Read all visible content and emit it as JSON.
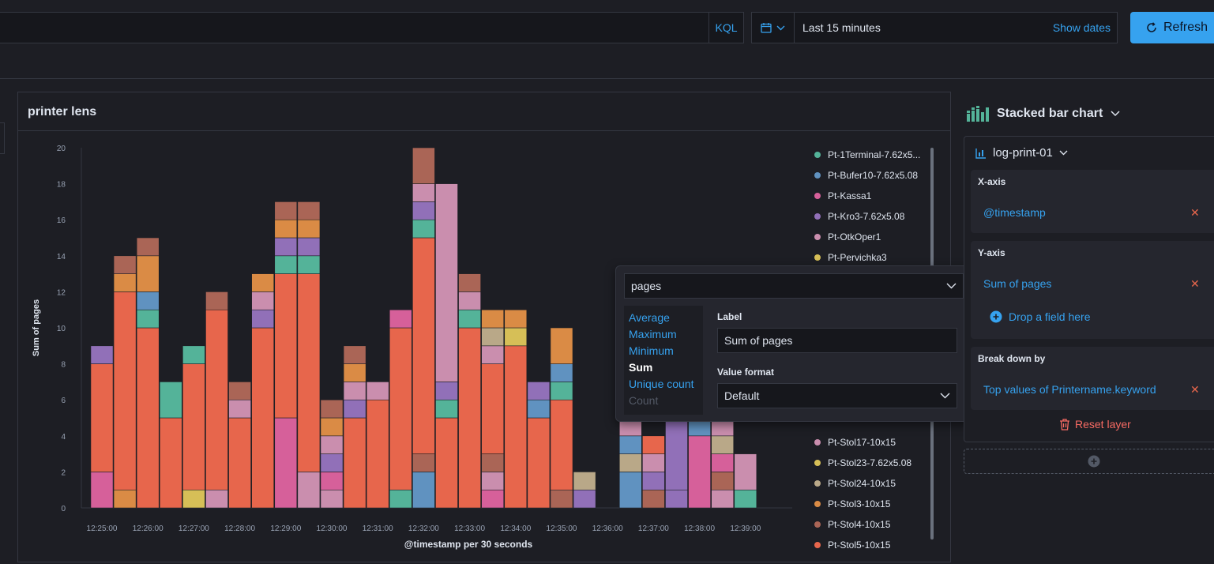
{
  "topbar": {
    "kql_label": "KQL",
    "date_range": "Last 15 minutes",
    "show_dates_label": "Show dates",
    "refresh_label": "Refresh"
  },
  "panel": {
    "title": "printer lens"
  },
  "chart_data": {
    "type": "bar",
    "stacked": true,
    "title": "printer lens",
    "xlabel": "@timestamp per 30 seconds",
    "ylabel": "Sum of pages",
    "ylim": [
      0,
      20
    ],
    "yticks": [
      0,
      2,
      4,
      6,
      8,
      10,
      12,
      14,
      16,
      18,
      20
    ],
    "xtick_labels": [
      "12:25:00",
      "12:26:00",
      "12:27:00",
      "12:28:00",
      "12:29:00",
      "12:30:00",
      "12:31:00",
      "12:32:00",
      "12:33:00",
      "12:34:00",
      "12:35:00",
      "12:36:00",
      "12:37:00",
      "12:38:00",
      "12:39:00"
    ],
    "grid": false,
    "legend_position": "right",
    "bars": [
      {
        "t": "12:25:00",
        "stack": [
          [
            2,
            "#d6609a"
          ],
          [
            6,
            "#e7664c"
          ],
          [
            1,
            "#9170b8"
          ]
        ]
      },
      {
        "t": "12:25:30",
        "stack": [
          [
            1,
            "#da8b45"
          ],
          [
            11,
            "#e7664c"
          ],
          [
            1,
            "#da8b45"
          ],
          [
            1,
            "#aa6556"
          ]
        ]
      },
      {
        "t": "12:26:00",
        "stack": [
          [
            10,
            "#e7664c"
          ],
          [
            1,
            "#54b399"
          ],
          [
            1,
            "#6092c0"
          ],
          [
            2,
            "#da8b45"
          ],
          [
            1,
            "#aa6556"
          ]
        ]
      },
      {
        "t": "12:26:30",
        "stack": [
          [
            5,
            "#e7664c"
          ],
          [
            2,
            "#54b399"
          ]
        ]
      },
      {
        "t": "12:27:00",
        "stack": [
          [
            1,
            "#d6bf57"
          ],
          [
            7,
            "#e7664c"
          ],
          [
            1,
            "#54b399"
          ]
        ]
      },
      {
        "t": "12:27:30",
        "stack": [
          [
            1,
            "#ca8eae"
          ],
          [
            10,
            "#e7664c"
          ],
          [
            1,
            "#aa6556"
          ]
        ]
      },
      {
        "t": "12:28:00",
        "stack": [
          [
            5,
            "#e7664c"
          ],
          [
            1,
            "#ca8eae"
          ],
          [
            1,
            "#aa6556"
          ]
        ]
      },
      {
        "t": "12:28:30",
        "stack": [
          [
            10,
            "#e7664c"
          ],
          [
            1,
            "#9170b8"
          ],
          [
            1,
            "#ca8eae"
          ],
          [
            1,
            "#da8b45"
          ]
        ]
      },
      {
        "t": "12:29:00",
        "stack": [
          [
            5,
            "#d6609a"
          ],
          [
            8,
            "#e7664c"
          ],
          [
            1,
            "#54b399"
          ],
          [
            1,
            "#9170b8"
          ],
          [
            1,
            "#da8b45"
          ],
          [
            1,
            "#aa6556"
          ]
        ]
      },
      {
        "t": "12:29:30",
        "stack": [
          [
            2,
            "#ca8eae"
          ],
          [
            11,
            "#e7664c"
          ],
          [
            1,
            "#54b399"
          ],
          [
            1,
            "#9170b8"
          ],
          [
            1,
            "#da8b45"
          ],
          [
            1,
            "#aa6556"
          ]
        ]
      },
      {
        "t": "12:30:00",
        "stack": [
          [
            1,
            "#ca8eae"
          ],
          [
            1,
            "#d6609a"
          ],
          [
            1,
            "#9170b8"
          ],
          [
            1,
            "#ca8eae"
          ],
          [
            1,
            "#da8b45"
          ],
          [
            1,
            "#aa6556"
          ]
        ]
      },
      {
        "t": "12:30:30",
        "stack": [
          [
            5,
            "#e7664c"
          ],
          [
            1,
            "#9170b8"
          ],
          [
            1,
            "#ca8eae"
          ],
          [
            1,
            "#da8b45"
          ],
          [
            1,
            "#aa6556"
          ]
        ]
      },
      {
        "t": "12:31:00",
        "stack": [
          [
            6,
            "#e7664c"
          ],
          [
            1,
            "#ca8eae"
          ]
        ]
      },
      {
        "t": "12:31:30",
        "stack": [
          [
            1,
            "#54b399"
          ],
          [
            9,
            "#e7664c"
          ],
          [
            1,
            "#d6609a"
          ]
        ]
      },
      {
        "t": "12:32:00",
        "stack": [
          [
            2,
            "#6092c0"
          ],
          [
            1,
            "#aa6556"
          ],
          [
            12,
            "#e7664c"
          ],
          [
            1,
            "#54b399"
          ],
          [
            1,
            "#9170b8"
          ],
          [
            1,
            "#ca8eae"
          ],
          [
            2,
            "#aa6556"
          ]
        ]
      },
      {
        "t": "12:32:30",
        "stack": [
          [
            5,
            "#e7664c"
          ],
          [
            1,
            "#54b399"
          ],
          [
            1,
            "#9170b8"
          ],
          [
            11,
            "#ca8eae"
          ]
        ]
      },
      {
        "t": "12:33:00",
        "stack": [
          [
            10,
            "#e7664c"
          ],
          [
            1,
            "#54b399"
          ],
          [
            1,
            "#ca8eae"
          ],
          [
            1,
            "#aa6556"
          ]
        ]
      },
      {
        "t": "12:33:30",
        "stack": [
          [
            1,
            "#d6609a"
          ],
          [
            1,
            "#ca8eae"
          ],
          [
            1,
            "#aa6556"
          ],
          [
            5,
            "#e7664c"
          ],
          [
            1,
            "#ca8eae"
          ],
          [
            1,
            "#b9a888"
          ],
          [
            1,
            "#da8b45"
          ]
        ]
      },
      {
        "t": "12:34:00",
        "stack": [
          [
            9,
            "#e7664c"
          ],
          [
            1,
            "#d6bf57"
          ],
          [
            1,
            "#da8b45"
          ]
        ]
      },
      {
        "t": "12:34:30",
        "stack": [
          [
            5,
            "#e7664c"
          ],
          [
            1,
            "#6092c0"
          ],
          [
            1,
            "#9170b8"
          ]
        ]
      },
      {
        "t": "12:35:00",
        "stack": [
          [
            1,
            "#aa6556"
          ],
          [
            5,
            "#e7664c"
          ],
          [
            1,
            "#54b399"
          ],
          [
            1,
            "#6092c0"
          ],
          [
            2,
            "#da8b45"
          ]
        ]
      },
      {
        "t": "12:35:30",
        "stack": [
          [
            1,
            "#9170b8"
          ],
          [
            1,
            "#b9a888"
          ]
        ]
      },
      {
        "t": "12:36:30",
        "stack": [
          [
            2,
            "#6092c0"
          ],
          [
            1,
            "#b9a888"
          ],
          [
            1,
            "#6092c0"
          ],
          [
            1,
            "#ca8eae"
          ]
        ]
      },
      {
        "t": "12:37:00",
        "stack": [
          [
            1,
            "#aa6556"
          ],
          [
            1,
            "#9170b8"
          ],
          [
            1,
            "#ca8eae"
          ],
          [
            1,
            "#e7664c"
          ]
        ]
      },
      {
        "t": "12:37:30",
        "stack": [
          [
            1,
            "#9170b8"
          ],
          [
            4,
            "#9170b8"
          ]
        ]
      },
      {
        "t": "12:38:00",
        "stack": [
          [
            4,
            "#d6609a"
          ],
          [
            1,
            "#6092c0"
          ]
        ]
      },
      {
        "t": "12:38:30",
        "stack": [
          [
            1,
            "#ca8eae"
          ],
          [
            1,
            "#aa6556"
          ],
          [
            1,
            "#d6609a"
          ],
          [
            1,
            "#b9a888"
          ],
          [
            1,
            "#ca8eae"
          ]
        ]
      },
      {
        "t": "12:39:00",
        "stack": [
          [
            1,
            "#54b399"
          ],
          [
            2,
            "#ca8eae"
          ]
        ]
      }
    ]
  },
  "legend": [
    {
      "label": "Pt-1Terminal-7.62x5...",
      "color": "#54b399"
    },
    {
      "label": "Pt-Bufer10-7.62x5.08",
      "color": "#6092c0"
    },
    {
      "label": "Pt-Kassa1",
      "color": "#d6609a"
    },
    {
      "label": "Pt-Kro3-7.62x5.08",
      "color": "#9170b8"
    },
    {
      "label": "Pt-OtkOper1",
      "color": "#ca8eae"
    },
    {
      "label": "Pt-Pervichka3",
      "color": "#d6bf57"
    },
    {
      "label": "Pt-Stol17-10x15",
      "color": "#ca8eae"
    },
    {
      "label": "Pt-Stol23-7.62x5.08",
      "color": "#d6bf57"
    },
    {
      "label": "Pt-Stol24-10x15",
      "color": "#b9a888"
    },
    {
      "label": "Pt-Stol3-10x15",
      "color": "#da8b45"
    },
    {
      "label": "Pt-Stol4-10x15",
      "color": "#aa6556"
    },
    {
      "label": "Pt-Stol5-10x15",
      "color": "#e7664c"
    }
  ],
  "popover": {
    "field_value": "pages",
    "functions": [
      {
        "label": "Average",
        "state": "link"
      },
      {
        "label": "Maximum",
        "state": "link"
      },
      {
        "label": "Minimum",
        "state": "link"
      },
      {
        "label": "Sum",
        "state": "active"
      },
      {
        "label": "Unique count",
        "state": "link"
      },
      {
        "label": "Count",
        "state": "disabled"
      }
    ],
    "label_title": "Label",
    "label_value": "Sum of pages",
    "format_title": "Value format",
    "format_value": "Default"
  },
  "sidebar": {
    "chart_type": "Stacked bar chart",
    "layer_index": "log-print-01",
    "x_axis_title": "X-axis",
    "x_axis_field": "@timestamp",
    "y_axis_title": "Y-axis",
    "y_axis_field": "Sum of pages",
    "drop_field_label": "Drop a field here",
    "breakdown_title": "Break down by",
    "breakdown_field": "Top values of Printername.keyword",
    "reset_label": "Reset layer"
  },
  "colors": {
    "accent": "#36a2ef",
    "danger": "#f86b63",
    "background": "#1d1e24"
  }
}
